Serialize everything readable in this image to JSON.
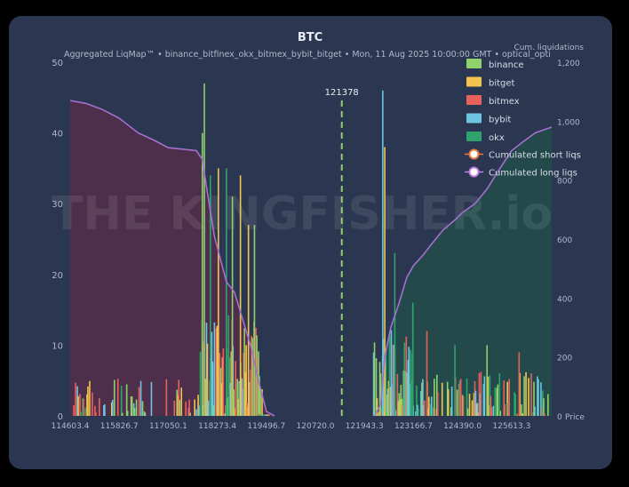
{
  "chart_data": {
    "type": "bar",
    "title": "BTC",
    "subtitle": "Aggregated LiqMap™  •  binance_bitfinex_okx_bitmex_bybit_bitget  •  Mon, 11 Aug 2025 10:00:00 GMT  •  optical_opti",
    "y2label": "Cum. liquidations",
    "xlabel_right": "Price",
    "watermark": "THE KINGFISHER.io",
    "current_price_label": "121378",
    "current_price": 121378,
    "xlim": [
      114603.4,
      126613.3
    ],
    "ylim": [
      0,
      50
    ],
    "y2lim": [
      0,
      1200
    ],
    "x_ticks": [
      "114603.4",
      "115826.7",
      "117050.1",
      "118273.4",
      "119496.7",
      "120720.0",
      "121943.3",
      "123166.7",
      "124390.0",
      "125613.3"
    ],
    "y_ticks": [
      "0",
      "10",
      "20",
      "30",
      "40",
      "50"
    ],
    "y2_ticks": [
      "0",
      "200",
      "400",
      "600",
      "800",
      "1,000",
      "1,200"
    ],
    "grid": false,
    "legend_position": "top-right",
    "series": [
      {
        "name": "binance",
        "color": "#8fd16a"
      },
      {
        "name": "bitget",
        "color": "#f3c44d"
      },
      {
        "name": "bitmex",
        "color": "#e8615c"
      },
      {
        "name": "bybit",
        "color": "#6cc5e2"
      },
      {
        "name": "okx",
        "color": "#2fa36b"
      }
    ],
    "cumulative_lines": [
      {
        "name": "Cumulated short liqs",
        "marker_color": "#e8793f"
      },
      {
        "name": "Cumulated long liqs",
        "marker_color": "#c07ee0"
      }
    ],
    "long_cumulative": {
      "x": [
        114603.4,
        115000,
        115400,
        115826.7,
        116300,
        116700,
        117050.1,
        117400,
        117750,
        117900,
        118000,
        118200,
        118500,
        118700,
        118900,
        119100,
        119300,
        119496.7,
        119700
      ],
      "y": [
        1070,
        1060,
        1040,
        1010,
        960,
        935,
        910,
        905,
        900,
        870,
        780,
        610,
        455,
        420,
        330,
        240,
        120,
        15,
        0
      ]
    },
    "short_cumulative": {
      "x": [
        122200,
        122350,
        122450,
        122600,
        122800,
        123000,
        123166.7,
        123400,
        123600,
        123900,
        124200,
        124390.0,
        124700,
        125000,
        125300,
        125613.3,
        125900,
        126200,
        126613.3
      ],
      "y": [
        0,
        40,
        200,
        300,
        380,
        470,
        510,
        545,
        580,
        630,
        665,
        690,
        720,
        770,
        835,
        900,
        930,
        960,
        980
      ]
    },
    "notable_bars": [
      {
        "x": 117950,
        "y": 47
      },
      {
        "x": 117900,
        "y": 40
      },
      {
        "x": 118100,
        "y": 34
      },
      {
        "x": 118300,
        "y": 35
      },
      {
        "x": 118500,
        "y": 35
      },
      {
        "x": 118650,
        "y": 31
      },
      {
        "x": 118850,
        "y": 34
      },
      {
        "x": 119050,
        "y": 27
      },
      {
        "x": 119200,
        "y": 27
      },
      {
        "x": 122400,
        "y": 46
      },
      {
        "x": 122450,
        "y": 38
      },
      {
        "x": 122700,
        "y": 23
      },
      {
        "x": 123150,
        "y": 16
      },
      {
        "x": 123500,
        "y": 12
      },
      {
        "x": 124200,
        "y": 10
      },
      {
        "x": 125000,
        "y": 10
      },
      {
        "x": 125800,
        "y": 9
      }
    ]
  }
}
